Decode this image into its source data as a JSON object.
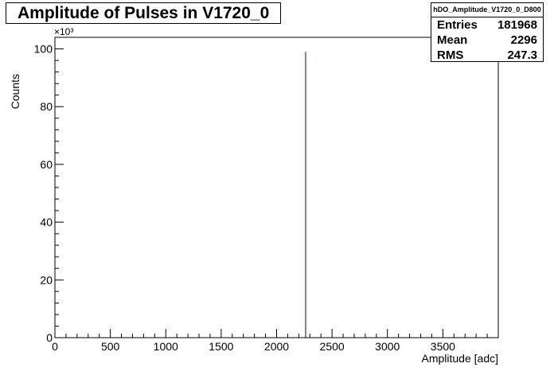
{
  "chart_data": {
    "type": "bar",
    "title": "Amplitude of Pulses in V1720_0",
    "xlabel": "Amplitude [adc]",
    "ylabel": "Counts",
    "y_exponent_label": "×10³",
    "xlim": [
      0,
      4000
    ],
    "ylim": [
      0,
      104000
    ],
    "x_major_ticks": [
      0,
      500,
      1000,
      1500,
      2000,
      2500,
      3000,
      3500
    ],
    "y_major_ticks": [
      0,
      20000,
      40000,
      60000,
      80000,
      100000
    ],
    "y_tick_labels": [
      "0",
      "20",
      "40",
      "60",
      "80",
      "100"
    ],
    "bins": [
      {
        "x": 2262,
        "value": 99000
      }
    ],
    "stats": {
      "name": "hDO_Amplitude_V1720_0_D800",
      "rows": [
        {
          "label": "Entries",
          "value": "181968"
        },
        {
          "label": "Mean",
          "value": "2296"
        },
        {
          "label": "RMS",
          "value": "247.3"
        }
      ]
    },
    "grid": false,
    "colors": {
      "line": "#000080",
      "axis": "#000000"
    }
  }
}
